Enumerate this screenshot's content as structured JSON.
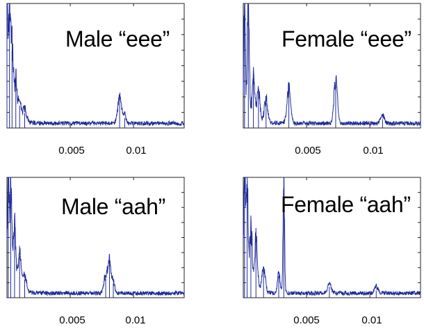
{
  "line_color": "#1f2a9a",
  "chart_data": [
    {
      "type": "line",
      "title": "Male “eee”",
      "xlabel": "",
      "ylabel": "",
      "xlim": [
        0,
        0.014
      ],
      "ylim": [
        0,
        1
      ],
      "xticks": [
        0.005,
        0.01
      ],
      "xtick_labels": [
        "0.005",
        "0.01"
      ],
      "grid": false,
      "peaks": [
        {
          "x": 0.0,
          "y": 1.0,
          "w": 6e-05
        },
        {
          "x": 0.0002,
          "y": 0.88,
          "w": 8e-05
        },
        {
          "x": 0.0004,
          "y": 0.62,
          "w": 0.0001
        },
        {
          "x": 0.0007,
          "y": 0.34,
          "w": 0.0001
        },
        {
          "x": 0.001,
          "y": 0.18,
          "w": 0.00012
        },
        {
          "x": 0.0014,
          "y": 0.12,
          "w": 0.00014
        },
        {
          "x": 0.0089,
          "y": 0.24,
          "w": 0.00015
        },
        {
          "x": 0.0093,
          "y": 0.08,
          "w": 0.0001
        }
      ]
    },
    {
      "type": "line",
      "title": "Female “eee”",
      "xlabel": "",
      "ylabel": "",
      "xlim": [
        0,
        0.014
      ],
      "ylim": [
        0,
        1
      ],
      "xticks": [
        0.005,
        0.01
      ],
      "xtick_labels": [
        "0.005",
        "0.01"
      ],
      "grid": false,
      "peaks": [
        {
          "x": 0.0001,
          "y": 1.0,
          "w": 6e-05
        },
        {
          "x": 0.0004,
          "y": 1.0,
          "w": 8e-05
        },
        {
          "x": 0.0008,
          "y": 0.4,
          "w": 0.0001
        },
        {
          "x": 0.0012,
          "y": 0.28,
          "w": 0.00012
        },
        {
          "x": 0.0018,
          "y": 0.2,
          "w": 0.00014
        },
        {
          "x": 0.0036,
          "y": 0.32,
          "w": 0.00014
        },
        {
          "x": 0.0073,
          "y": 0.37,
          "w": 0.00014
        },
        {
          "x": 0.011,
          "y": 0.07,
          "w": 0.00015
        }
      ]
    },
    {
      "type": "line",
      "title": "Male “aah”",
      "xlabel": "",
      "ylabel": "",
      "xlim": [
        0,
        0.014
      ],
      "ylim": [
        0,
        1
      ],
      "xticks": [
        0.005,
        0.01
      ],
      "xtick_labels": [
        "0.005",
        "0.01"
      ],
      "grid": false,
      "peaks": [
        {
          "x": 0.0001,
          "y": 1.0,
          "w": 6e-05
        },
        {
          "x": 0.0003,
          "y": 0.95,
          "w": 8e-05
        },
        {
          "x": 0.0006,
          "y": 0.6,
          "w": 0.0001
        },
        {
          "x": 0.001,
          "y": 0.35,
          "w": 0.00012
        },
        {
          "x": 0.0014,
          "y": 0.15,
          "w": 0.00014
        },
        {
          "x": 0.0078,
          "y": 0.16,
          "w": 0.00014
        },
        {
          "x": 0.0081,
          "y": 0.28,
          "w": 0.00012
        },
        {
          "x": 0.0084,
          "y": 0.12,
          "w": 0.0001
        }
      ]
    },
    {
      "type": "line",
      "title": "Female “aah”",
      "xlabel": "",
      "ylabel": "",
      "xlim": [
        0,
        0.014
      ],
      "ylim": [
        0,
        1
      ],
      "xticks": [
        0.005,
        0.01
      ],
      "xtick_labels": [
        "0.005",
        "0.01"
      ],
      "grid": false,
      "peaks": [
        {
          "x": 0.0001,
          "y": 1.0,
          "w": 6e-05
        },
        {
          "x": 0.0003,
          "y": 0.9,
          "w": 8e-05
        },
        {
          "x": 0.0006,
          "y": 0.55,
          "w": 0.0001
        },
        {
          "x": 0.001,
          "y": 0.45,
          "w": 0.00012
        },
        {
          "x": 0.0016,
          "y": 0.22,
          "w": 0.00014
        },
        {
          "x": 0.0032,
          "y": 1.0,
          "w": 6e-05
        },
        {
          "x": 0.0028,
          "y": 0.18,
          "w": 0.0001
        },
        {
          "x": 0.0068,
          "y": 0.09,
          "w": 0.00014
        },
        {
          "x": 0.0105,
          "y": 0.06,
          "w": 0.00015
        }
      ]
    }
  ]
}
